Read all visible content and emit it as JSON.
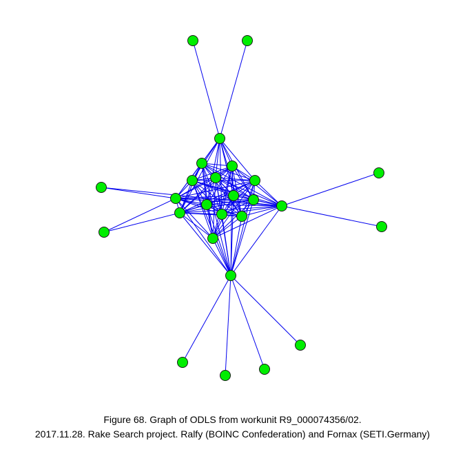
{
  "caption": {
    "line1": "Figure 68. Graph of ODLS from workunit R9_000074356/02.",
    "line2": "2017.11.28. Rake Search project. Ralfy (BOINC Confederation) and Fornax (SETI.Germany)"
  },
  "graph": {
    "node_color": "#00ee00",
    "node_stroke": "#1a1a1a",
    "edge_color": "#0000ee",
    "node_count": 27
  }
}
